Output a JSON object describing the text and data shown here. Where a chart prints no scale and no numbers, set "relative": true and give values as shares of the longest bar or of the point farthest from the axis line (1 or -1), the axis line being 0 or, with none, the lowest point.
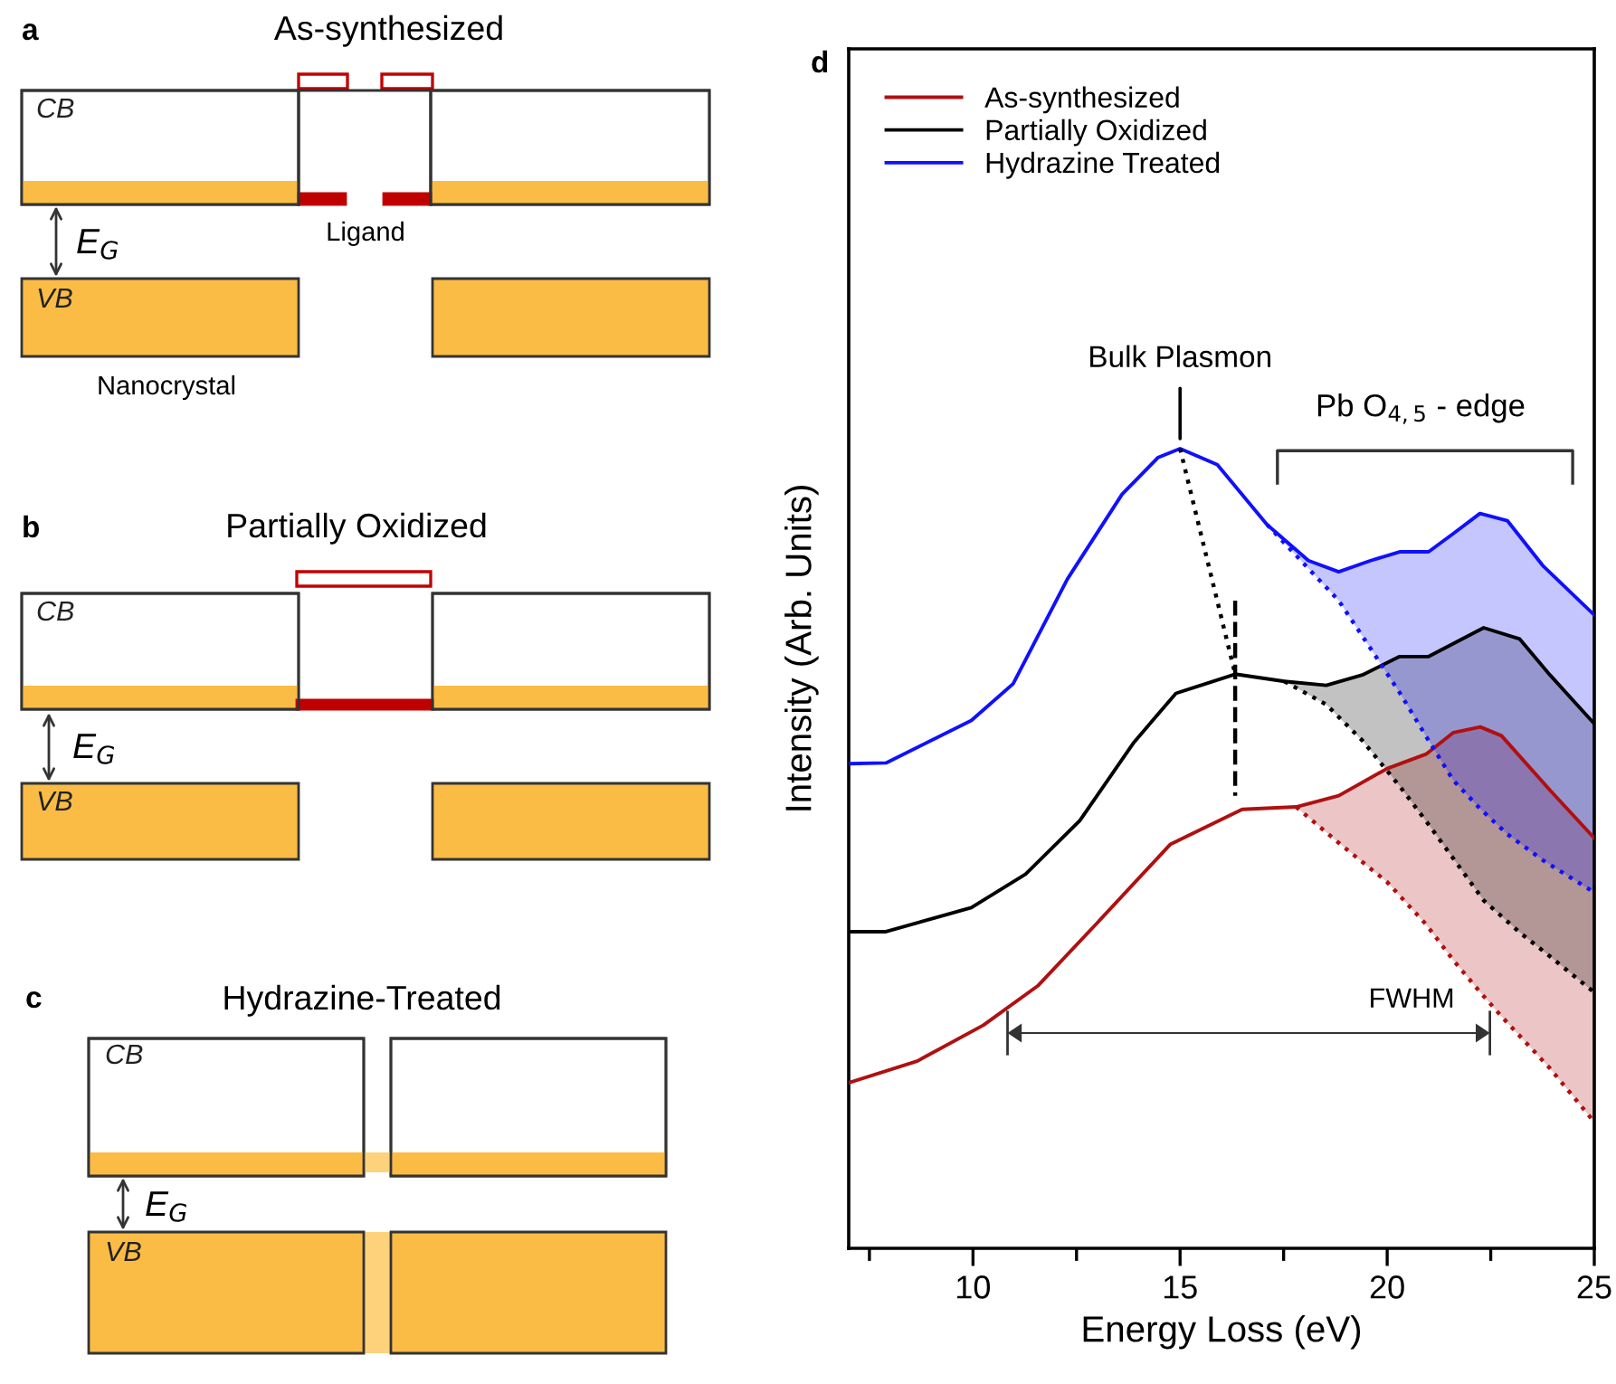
{
  "chart_data": [
    {
      "type": "other",
      "title": "As-synthesized",
      "annotations": [
        "a",
        "CB",
        "VB",
        "E$_{G}$",
        "Ligand",
        "Nanocrystal"
      ]
    },
    {
      "type": "other",
      "title": "Partially Oxidized",
      "annotations": [
        "b",
        "CB",
        "VB",
        "E$_{G}$"
      ]
    },
    {
      "type": "other",
      "title": "Hydrazine-Treated",
      "annotations": [
        "c",
        "CB",
        "VB",
        "E$_{G}$"
      ]
    },
    {
      "type": "line",
      "xlabel": "Energy Loss (eV)",
      "ylabel": "Intensity (Arb. Units)",
      "relative": true,
      "marker": "none",
      "grid": false,
      "legend": "top left",
      "xlim": [
        7,
        25
      ],
      "xticks": [
        {
          "value": 7.5,
          "label": null
        },
        10,
        {
          "value": 12.5,
          "label": null
        },
        15,
        {
          "value": 17.5,
          "label": null
        },
        20,
        {
          "value": 22.5,
          "label": null
        },
        25
      ],
      "annotations": [
        "d",
        {
          "text": "Bulk Plasmon",
          "x": 15,
          "y": 1.0
        },
        "Pb O$_{4,5}$ - edge",
        "FWHM"
      ],
      "series": [
        {
          "name": "As-synthesized",
          "color": "#b01010",
          "line_style": "solid",
          "x": [
            7,
            8.65,
            10.25,
            11.56,
            13.0,
            14.76,
            16.5,
            17.8,
            18.83,
            20.0,
            20.94,
            21.6,
            22.25,
            22.76,
            23.93,
            25
          ],
          "values": [
            0.207,
            0.234,
            0.279,
            0.328,
            0.407,
            0.505,
            0.549,
            0.552,
            0.566,
            0.6,
            0.618,
            0.645,
            0.652,
            0.641,
            0.573,
            0.513
          ]
        },
        {
          "name": "Partially Oxidized",
          "color": "#000000",
          "line_style": "solid",
          "x": [
            7,
            7.9,
            9.96,
            11.27,
            12.58,
            13.89,
            14.9,
            16.33,
            17.52,
            18.53,
            19.4,
            20.3,
            21.0,
            22.33,
            23.2,
            23.93,
            25
          ],
          "values": [
            0.396,
            0.396,
            0.426,
            0.468,
            0.535,
            0.633,
            0.694,
            0.718,
            0.709,
            0.704,
            0.717,
            0.74,
            0.74,
            0.776,
            0.762,
            0.717,
            0.656
          ]
        },
        {
          "name": "Hydrazine Treated",
          "color": "#1010ff",
          "line_style": "solid",
          "x": [
            7,
            7.9,
            9.96,
            10.97,
            12.28,
            13.6,
            14.47,
            15.0,
            15.9,
            17.1,
            18.1,
            18.83,
            19.6,
            20.3,
            21.0,
            21.6,
            22.24,
            22.9,
            23.77,
            25
          ],
          "values": [
            0.606,
            0.607,
            0.66,
            0.706,
            0.837,
            0.943,
            0.989,
            1.0,
            0.98,
            0.905,
            0.86,
            0.846,
            0.86,
            0.871,
            0.871,
            0.894,
            0.919,
            0.91,
            0.853,
            0.792
          ]
        },
        {
          "color": "#b01010",
          "line_style": "dotted",
          "x": [
            17.8,
            18.83,
            20.0,
            20.94,
            21.6,
            22.25,
            22.76,
            23.93,
            25
          ],
          "values": [
            0.552,
            0.507,
            0.458,
            0.405,
            0.36,
            0.32,
            0.29,
            0.225,
            0.158
          ],
          "lower": [
            0.552,
            0.507,
            0.458,
            0.405,
            0.36,
            0.32,
            0.29,
            0.225,
            0.158
          ],
          "upper": [
            0.552,
            0.566,
            0.6,
            0.618,
            0.645,
            0.652,
            0.641,
            0.573,
            0.513
          ]
        },
        {
          "color": "#000000",
          "line_style": "dotted",
          "x": [
            17.52,
            18.53,
            19.4,
            20.3,
            21.0,
            22.33,
            23.2,
            23.93,
            25
          ],
          "values": [
            0.709,
            0.68,
            0.635,
            0.578,
            0.53,
            0.435,
            0.395,
            0.365,
            0.32
          ],
          "lower": [
            0.709,
            0.68,
            0.635,
            0.578,
            0.53,
            0.435,
            0.395,
            0.365,
            0.32
          ],
          "upper": [
            0.709,
            0.704,
            0.717,
            0.74,
            0.74,
            0.776,
            0.762,
            0.717,
            0.656
          ]
        },
        {
          "color": "#1010ff",
          "line_style": "dotted",
          "x": [
            17.1,
            18.1,
            18.83,
            19.6,
            20.3,
            21.0,
            21.6,
            22.24,
            22.9,
            23.77,
            25
          ],
          "values": [
            0.905,
            0.85,
            0.81,
            0.75,
            0.695,
            0.635,
            0.585,
            0.55,
            0.518,
            0.485,
            0.445
          ],
          "lower": [
            0.905,
            0.85,
            0.81,
            0.75,
            0.695,
            0.635,
            0.585,
            0.55,
            0.518,
            0.485,
            0.445
          ],
          "upper": [
            0.905,
            0.86,
            0.846,
            0.86,
            0.871,
            0.871,
            0.894,
            0.919,
            0.91,
            0.853,
            0.792
          ]
        },
        {
          "color": "#000000",
          "line_style": "dotted",
          "x": [
            15.0,
            16.33
          ],
          "values": [
            1.0,
            0.718
          ]
        },
        {
          "color": "#000000",
          "line_style": "dashed",
          "x": [
            16.33,
            16.33
          ],
          "values": [
            0.81,
            0.566
          ]
        }
      ]
    }
  ]
}
